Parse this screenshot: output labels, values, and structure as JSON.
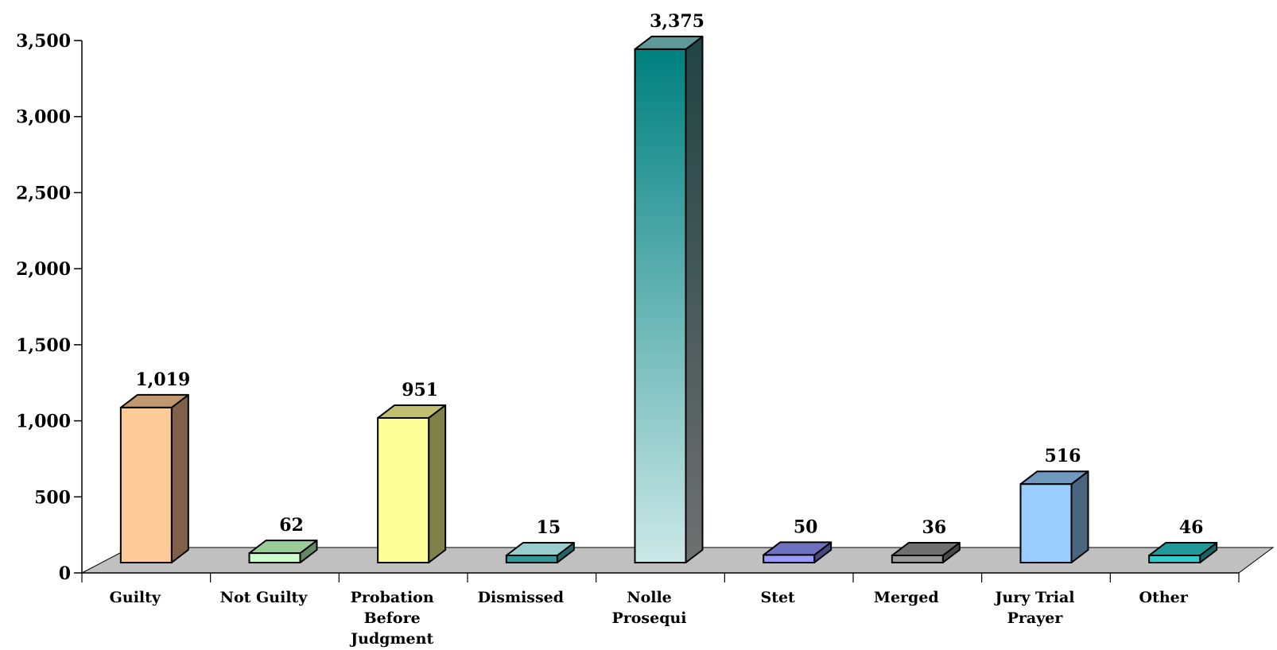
{
  "chart_data": {
    "type": "bar",
    "title": "",
    "xlabel": "",
    "ylabel": "",
    "ylim": [
      0,
      3500
    ],
    "yticks": [
      0,
      500,
      1000,
      1500,
      2000,
      2500,
      3000,
      3500
    ],
    "ytick_labels": [
      "0",
      "500",
      "1,000",
      "1,500",
      "2,000",
      "2,500",
      "3,000",
      "3,500"
    ],
    "grid": false,
    "legend": "none",
    "style": "3d-columns",
    "floor_color": "#c0c0c0",
    "categories": [
      {
        "label_lines": [
          "Guilty"
        ],
        "value": 1019,
        "value_label": "1,019",
        "front": "#ffcc99",
        "top": "#c09870",
        "side": "#806048",
        "gradient": false
      },
      {
        "label_lines": [
          "Not Guilty"
        ],
        "value": 62,
        "value_label": "62",
        "front": "#ccffcc",
        "top": "#99cc99",
        "side": "#668866",
        "gradient": false
      },
      {
        "label_lines": [
          "Probation",
          "Before",
          "Judgment"
        ],
        "value": 951,
        "value_label": "951",
        "front": "#ffff99",
        "top": "#c0c070",
        "side": "#808048",
        "gradient": false
      },
      {
        "label_lines": [
          "Dismissed"
        ],
        "value": 15,
        "value_label": "15",
        "front": "#339999",
        "top": "#99cccc",
        "side": "#226666",
        "gradient": false
      },
      {
        "label_lines": [
          "Nolle",
          "Prosequi"
        ],
        "value": 3375,
        "value_label": "3,375",
        "front": "#008080",
        "front_bottom": "#cce8e8",
        "top": "#5f9999",
        "side": "#1f4444",
        "side_bottom": "#707070",
        "gradient": true
      },
      {
        "label_lines": [
          "Stet"
        ],
        "value": 50,
        "value_label": "50",
        "front": "#9999ff",
        "top": "#7070c0",
        "side": "#484880",
        "gradient": false
      },
      {
        "label_lines": [
          "Merged"
        ],
        "value": 36,
        "value_label": "36",
        "front": "#999999",
        "top": "#707070",
        "side": "#484848",
        "gradient": false
      },
      {
        "label_lines": [
          "Jury Trial",
          "Prayer"
        ],
        "value": 516,
        "value_label": "516",
        "front": "#99ccff",
        "top": "#7099c0",
        "side": "#486680",
        "gradient": false
      },
      {
        "label_lines": [
          "Other"
        ],
        "value": 46,
        "value_label": "46",
        "front": "#33cccc",
        "top": "#229999",
        "side": "#166666",
        "gradient": false
      }
    ]
  }
}
